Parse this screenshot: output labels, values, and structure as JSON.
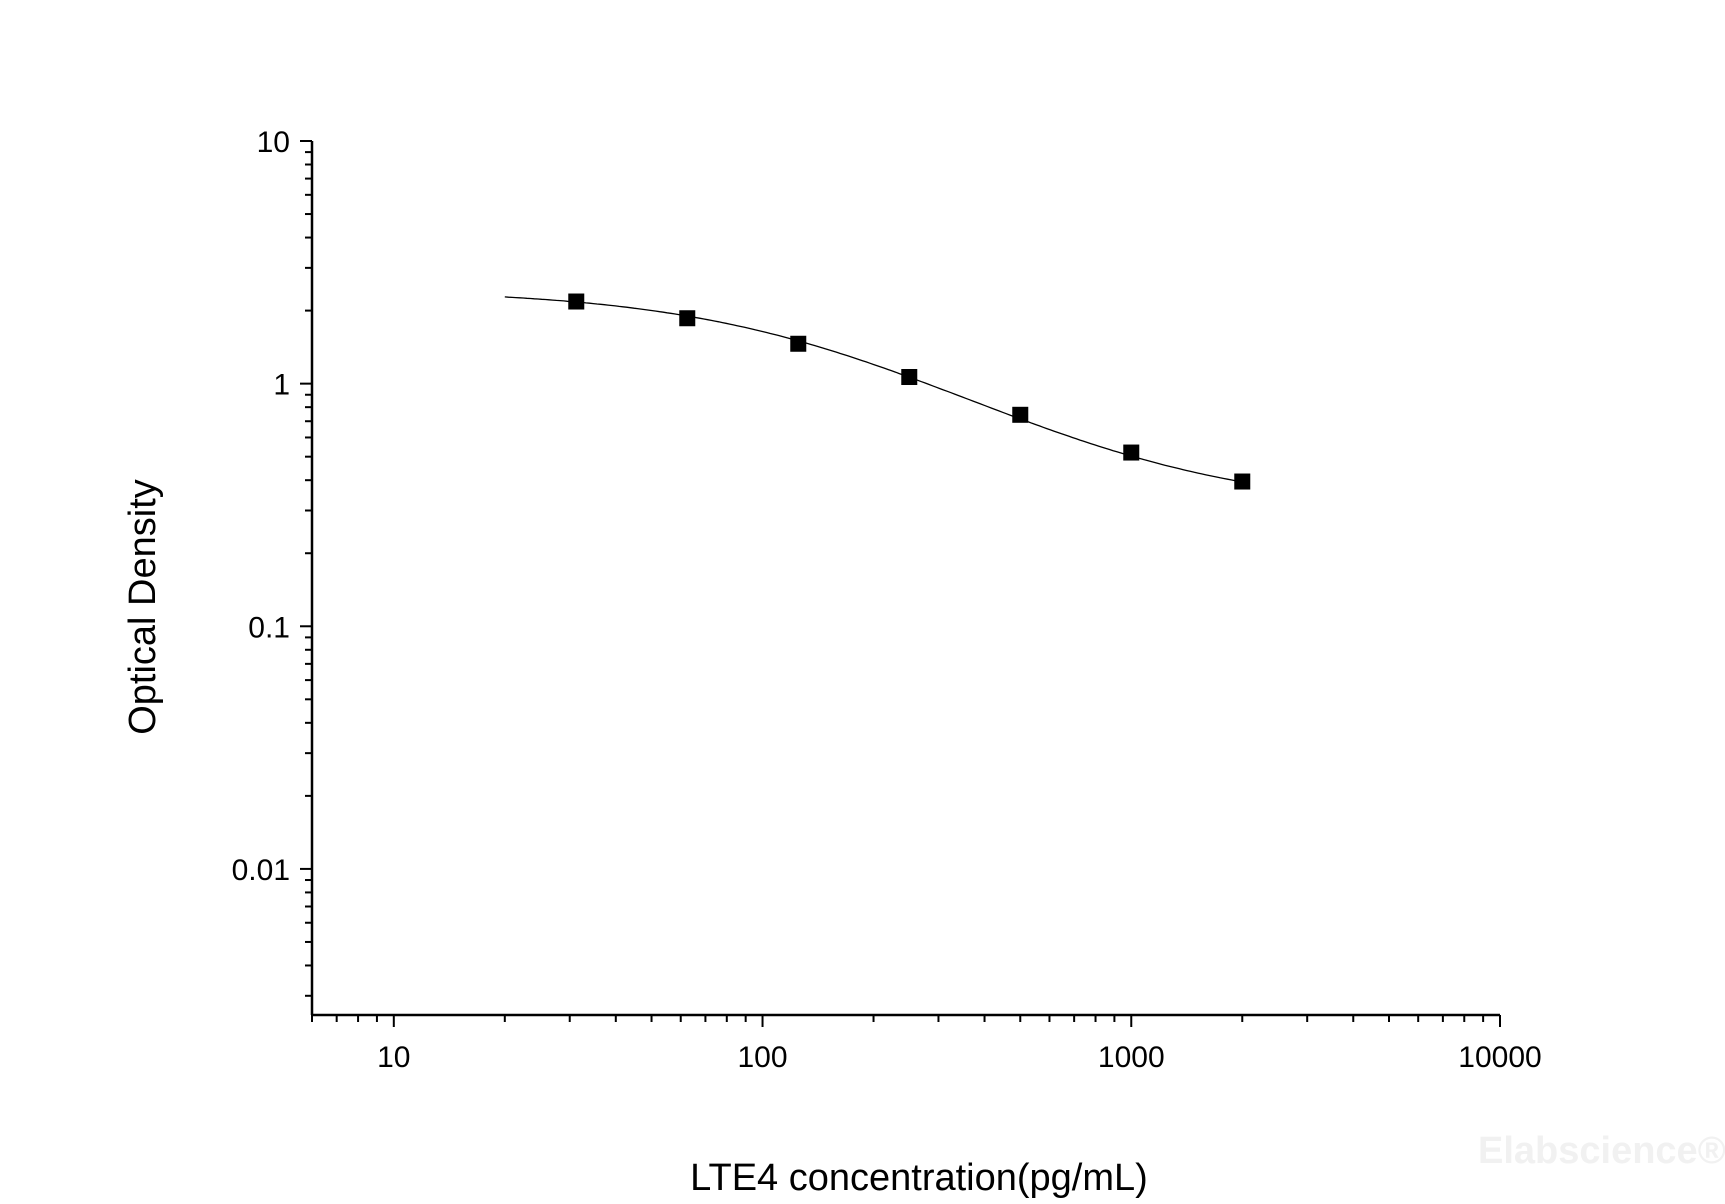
{
  "chart_data": {
    "type": "scatter",
    "title": "",
    "xlabel": "LTE4 concentration(pg/mL)",
    "ylabel": "Optical Density",
    "x_scale": "log",
    "y_scale": "log",
    "xlim": [
      6,
      10000
    ],
    "ylim": [
      0.0025,
      10
    ],
    "x_ticks": [
      {
        "value": 10,
        "label": "10"
      },
      {
        "value": 100,
        "label": "100"
      },
      {
        "value": 1000,
        "label": "1000"
      },
      {
        "value": 10000,
        "label": "10000"
      }
    ],
    "y_ticks": [
      {
        "value": 10,
        "label": "10"
      },
      {
        "value": 1,
        "label": "1"
      },
      {
        "value": 0.1,
        "label": "0.1"
      },
      {
        "value": 0.01,
        "label": "0.01"
      }
    ],
    "grid": false,
    "series": [
      {
        "marker": "square",
        "color": "#000000",
        "x": [
          31.25,
          62.5,
          125,
          250,
          500,
          1000,
          2000
        ],
        "y": [
          2.18,
          1.86,
          1.46,
          1.065,
          0.744,
          0.52,
          0.395
        ]
      }
    ],
    "fit_curve": {
      "type": "4-parameter logistic",
      "x_range": [
        20,
        2000
      ],
      "color": "#000000"
    },
    "watermark": "Elabscience®"
  }
}
